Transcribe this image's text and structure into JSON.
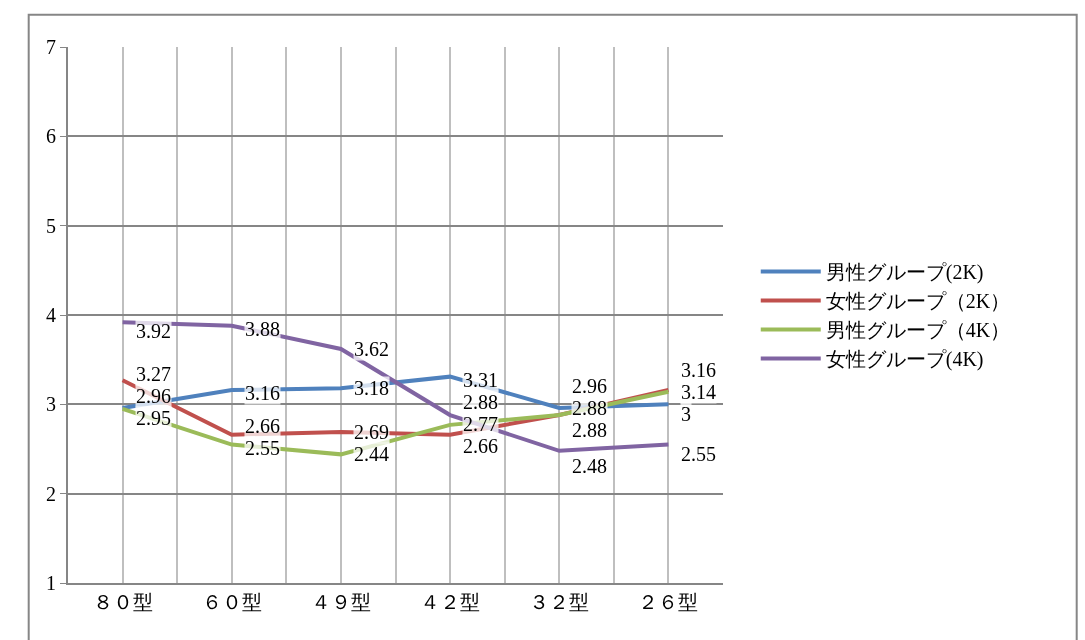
{
  "chart_data": {
    "type": "line",
    "categories": [
      "８０型",
      "６０型",
      "４９型",
      "４２型",
      "３２型",
      "２６型"
    ],
    "series": [
      {
        "name": "男性グループ(2K)",
        "color": "#4f81bd",
        "values": [
          2.96,
          3.16,
          3.18,
          3.31,
          2.96,
          3
        ]
      },
      {
        "name": "女性グループ（2K）",
        "color": "#c0504d",
        "values": [
          3.27,
          2.66,
          2.69,
          2.66,
          2.88,
          3.16
        ]
      },
      {
        "name": "男性グループ（4K）",
        "color": "#9bbb59",
        "values": [
          2.95,
          2.55,
          2.44,
          2.77,
          2.88,
          3.14
        ]
      },
      {
        "name": "女性グループ(4K)",
        "color": "#8064a2",
        "values": [
          3.92,
          3.88,
          3.62,
          2.88,
          2.48,
          2.55
        ]
      }
    ],
    "ylim": [
      1,
      7
    ],
    "yticks": [
      1,
      2,
      3,
      4,
      5,
      6,
      7
    ],
    "grid": true,
    "legend": "right",
    "data_labels": true,
    "marker": "none",
    "line_style": "solid"
  }
}
